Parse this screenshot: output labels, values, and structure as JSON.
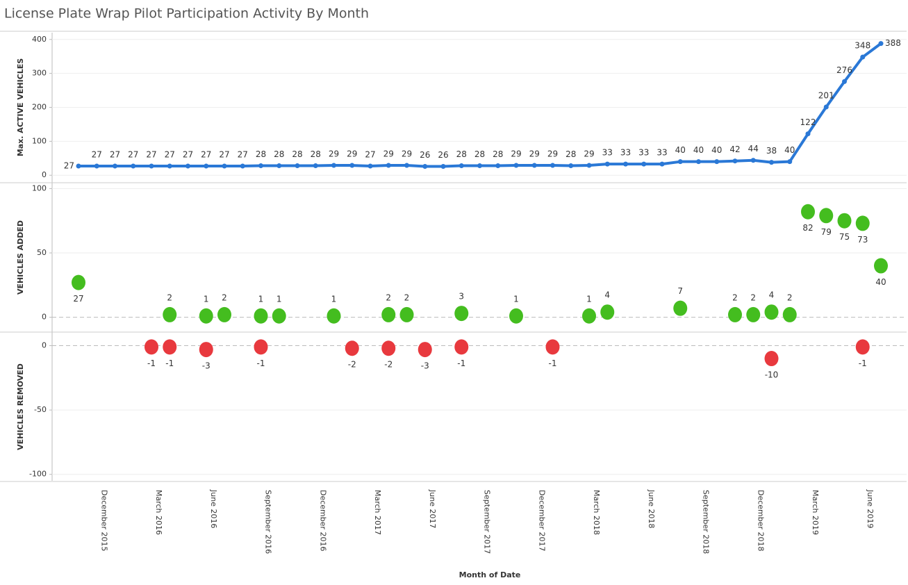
{
  "chart_data": {
    "title": "License Plate Wrap Pilot Participation Activity By Month",
    "x_label": "Month of Date",
    "categories": [
      null,
      "December 2015",
      null,
      null,
      "March 2016",
      null,
      null,
      "June 2016",
      null,
      null,
      "September 2016",
      null,
      null,
      "December 2016",
      null,
      null,
      "March 2017",
      null,
      null,
      "June 2017",
      null,
      null,
      "September 2017",
      null,
      null,
      "December 2017",
      null,
      null,
      "March 2018",
      null,
      null,
      "June 2018",
      null,
      null,
      "September 2018",
      null,
      null,
      "December 2018",
      null,
      null,
      "March 2019",
      null,
      null,
      "June 2019",
      null
    ],
    "panels": [
      {
        "type": "line",
        "y_label": "Max. ACTIVE VEHICLES",
        "color": "#2a78d6",
        "grid": true,
        "ylim": [
          -20,
          420
        ],
        "yticks": [
          0,
          100,
          200,
          300,
          400
        ],
        "values": [
          27,
          27,
          27,
          27,
          27,
          27,
          27,
          27,
          27,
          27,
          28,
          28,
          28,
          28,
          29,
          29,
          27,
          29,
          29,
          26,
          26,
          28,
          28,
          28,
          29,
          29,
          29,
          28,
          29,
          33,
          33,
          33,
          33,
          40,
          40,
          40,
          42,
          44,
          38,
          40,
          122,
          201,
          276,
          348,
          388
        ]
      },
      {
        "type": "dot",
        "y_label": "VEHICLES ADDED",
        "color": "#44bd1f",
        "grid": true,
        "ylim": [
          -11,
          104
        ],
        "yticks": [
          0,
          50,
          100
        ],
        "values": [
          27,
          null,
          null,
          null,
          null,
          2,
          null,
          1,
          2,
          null,
          1,
          1,
          null,
          null,
          1,
          null,
          null,
          2,
          2,
          null,
          null,
          3,
          null,
          null,
          1,
          null,
          null,
          null,
          1,
          4,
          null,
          null,
          null,
          7,
          null,
          null,
          2,
          2,
          4,
          2,
          82,
          79,
          75,
          73,
          40
        ]
      },
      {
        "type": "dot",
        "y_label": "VEHICLES REMOVED",
        "color": "#e8393e",
        "grid": true,
        "ylim": [
          -105,
          10
        ],
        "yticks": [
          -100,
          -50,
          0
        ],
        "values": [
          null,
          null,
          null,
          null,
          -1,
          -1,
          null,
          -3,
          null,
          null,
          -1,
          null,
          null,
          null,
          null,
          -2,
          null,
          -2,
          null,
          -3,
          null,
          -1,
          null,
          null,
          null,
          null,
          -1,
          null,
          null,
          null,
          null,
          null,
          null,
          null,
          null,
          null,
          null,
          null,
          -10,
          null,
          null,
          null,
          null,
          -1,
          null
        ]
      }
    ]
  }
}
